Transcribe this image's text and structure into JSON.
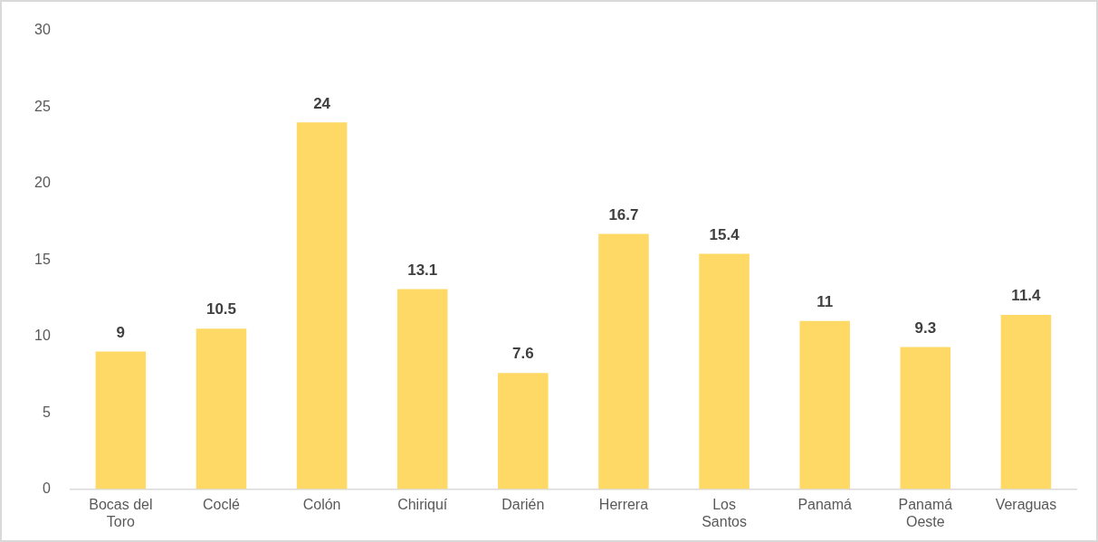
{
  "chart_data": {
    "type": "bar",
    "categories": [
      "Bocas del Toro",
      "Coclé",
      "Colón",
      "Chiriquí",
      "Darién",
      "Herrera",
      "Los Santos",
      "Panamá",
      "Panamá Oeste",
      "Veraguas"
    ],
    "values": [
      9,
      10.5,
      24,
      13.1,
      7.6,
      16.7,
      15.4,
      11,
      9.3,
      11.4
    ],
    "color": "#ffd966",
    "ylim": [
      0,
      30
    ],
    "yticks": [
      0,
      5,
      10,
      15,
      20,
      25,
      30
    ],
    "grid": false,
    "legend": false,
    "data_labels": true
  }
}
